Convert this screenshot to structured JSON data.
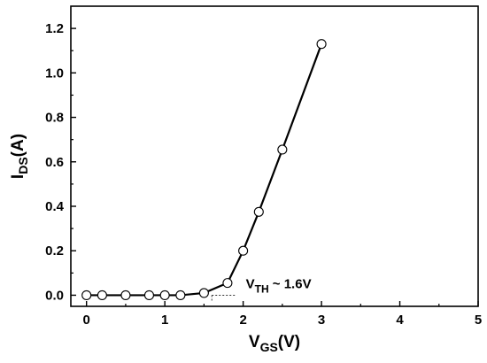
{
  "chart_data": {
    "type": "line",
    "title": "",
    "xlabel": {
      "main": "V",
      "sub": "GS",
      "suffix": "(V)"
    },
    "ylabel": {
      "main": "I",
      "sub": "DS",
      "suffix": "(A)"
    },
    "xlim": [
      -0.2,
      5
    ],
    "ylim": [
      -0.05,
      1.3
    ],
    "x_ticks": [
      0,
      1,
      2,
      3,
      4,
      5
    ],
    "y_ticks": [
      0.0,
      0.2,
      0.4,
      0.6,
      0.8,
      1.0,
      1.2
    ],
    "x_tick_labels": [
      "0",
      "1",
      "2",
      "3",
      "4",
      "5"
    ],
    "y_tick_labels": [
      "0.0",
      "0.2",
      "0.4",
      "0.6",
      "0.8",
      "1.0",
      "1.2"
    ],
    "grid": false,
    "legend": "none",
    "series": [
      {
        "x": [
          0,
          0.2,
          0.5,
          0.8,
          1.0,
          1.2,
          1.5,
          1.8,
          2.0,
          2.2,
          2.5,
          3.0
        ],
        "y": [
          0.0,
          0.0,
          0.0,
          0.0,
          0.0,
          0.0,
          0.01,
          0.055,
          0.2,
          0.375,
          0.655,
          1.13
        ],
        "color": "#000000",
        "marker": "open-circle"
      }
    ],
    "threshold_guide": {
      "x": [
        1.6,
        1.9
      ],
      "y": [
        0.0,
        0.0
      ]
    },
    "annotation": {
      "main": "V",
      "sub": "TH",
      "suffix": " ~ 1.6V",
      "x": 2.0,
      "y": 0.0
    }
  }
}
